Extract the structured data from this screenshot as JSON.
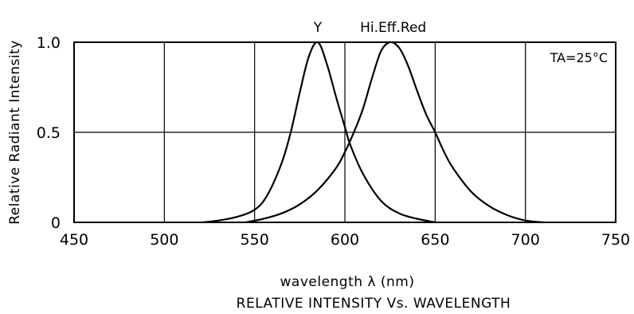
{
  "chart_data": {
    "type": "line",
    "title": "RELATIVE INTENSITY Vs. WAVELENGTH",
    "xlabel": "wavelength λ (nm)",
    "ylabel": "Relative Radiant Intensity",
    "xlim": [
      450,
      750
    ],
    "ylim": [
      0,
      1.0
    ],
    "x_ticks": [
      "450",
      "500",
      "550",
      "600",
      "650",
      "700",
      "750"
    ],
    "y_ticks": [
      "0",
      "0.5",
      "1.0"
    ],
    "grid": true,
    "annotation": "TA=25°C",
    "series": [
      {
        "name": "Y",
        "color": "#000000",
        "x": [
          521,
          530,
          540,
          550,
          557,
          565,
          570,
          575,
          580,
          585,
          590,
          595,
          600,
          603,
          610,
          620,
          630,
          640,
          650
        ],
        "y": [
          0.0,
          0.01,
          0.03,
          0.07,
          0.15,
          0.33,
          0.5,
          0.72,
          0.92,
          1.0,
          0.88,
          0.7,
          0.53,
          0.43,
          0.27,
          0.12,
          0.05,
          0.02,
          0.0
        ]
      },
      {
        "name": "Hi.Eff.Red",
        "color": "#000000",
        "x": [
          545,
          555,
          565,
          575,
          585,
          595,
          600,
          605,
          610,
          615,
          620,
          625,
          630,
          635,
          640,
          645,
          650,
          655,
          660,
          670,
          680,
          690,
          700,
          710
        ],
        "y": [
          0.0,
          0.02,
          0.05,
          0.1,
          0.18,
          0.3,
          0.39,
          0.5,
          0.63,
          0.8,
          0.95,
          1.0,
          0.97,
          0.87,
          0.73,
          0.6,
          0.5,
          0.39,
          0.3,
          0.17,
          0.09,
          0.04,
          0.01,
          0.0
        ]
      }
    ]
  }
}
